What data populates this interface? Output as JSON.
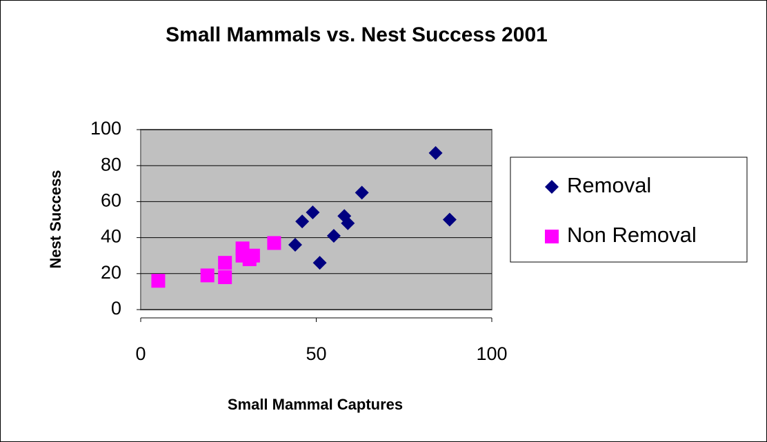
{
  "chart_data": {
    "type": "scatter",
    "title": "Small Mammals vs. Nest Success 2001",
    "x_label": "Small Mammal Captures",
    "y_label": "Nest Success",
    "xlim": [
      0,
      100
    ],
    "xticks": [
      0,
      50,
      100
    ],
    "ylim": [
      0,
      100
    ],
    "yticks": [
      0,
      20,
      40,
      60,
      80,
      100
    ],
    "grid": true,
    "legend": "right",
    "series": [
      {
        "name": "Removal",
        "color": "#000080",
        "marker": "diamond",
        "x": [
          84,
          88,
          63,
          58,
          59,
          55,
          51,
          49,
          46,
          44
        ],
        "values": [
          87,
          50,
          65,
          52,
          48,
          41,
          26,
          54,
          49,
          36
        ]
      },
      {
        "name": "Non Removal",
        "color": "#ff00ff",
        "marker": "square",
        "x": [
          5,
          19,
          24,
          24,
          29,
          29,
          31,
          32,
          38
        ],
        "values": [
          16,
          19,
          18,
          26,
          34,
          30,
          28,
          30,
          37
        ]
      }
    ]
  }
}
